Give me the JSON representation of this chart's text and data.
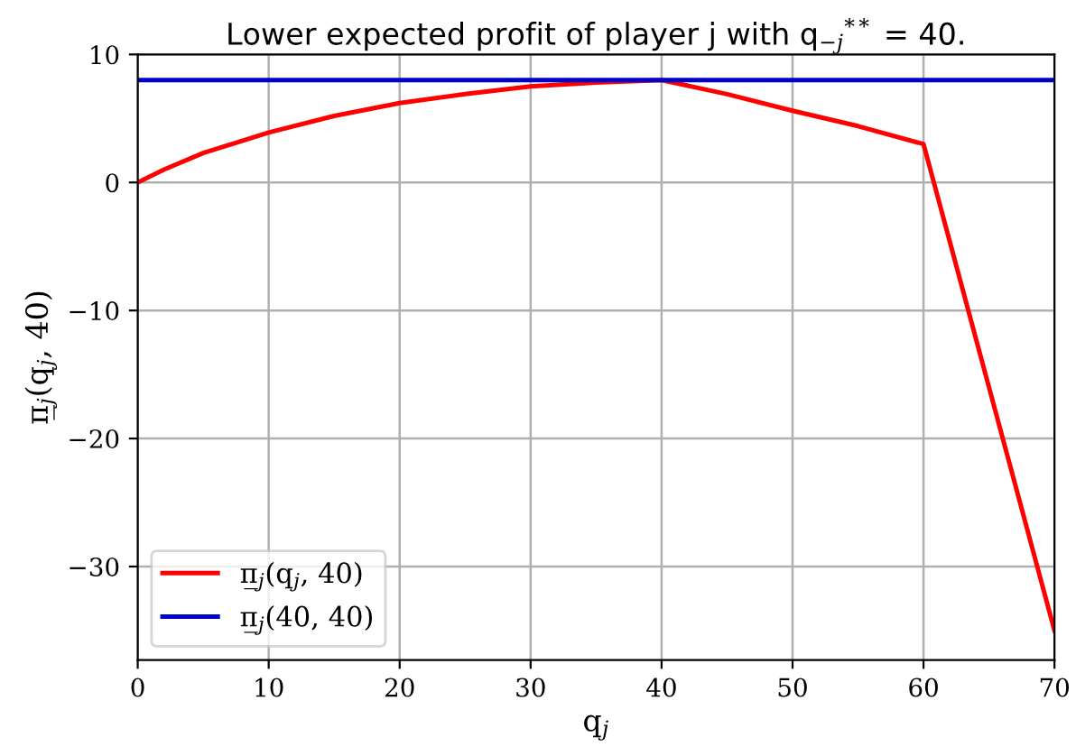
{
  "chart_data": {
    "type": "line",
    "title": "Lower expected profit of player j with q$_{−j}$$^{**}$ = 40.",
    "xlabel": "q$_{j}$",
    "ylabel": "π̲$_{j}$(q$_{j}$, 40)",
    "series": [
      {
        "name": "π̲$_{j}$(q$_{j}$, 40)",
        "color": "#ff0000",
        "x": [
          0,
          2,
          5,
          10,
          15,
          20,
          25,
          30,
          35,
          40,
          45,
          50,
          55,
          60,
          70
        ],
        "values": [
          0,
          1.0,
          2.3,
          3.9,
          5.2,
          6.2,
          6.9,
          7.5,
          7.8,
          8.0,
          6.9,
          5.6,
          4.4,
          3.0,
          -35
        ]
      },
      {
        "name": "π̲$_{j}$(40, 40)",
        "color": "#0000cc",
        "x": [
          0,
          70
        ],
        "values": [
          8.0,
          8.0
        ]
      }
    ],
    "xlim": [
      0,
      70
    ],
    "ylim": [
      -37.3,
      10
    ],
    "xticks": [
      0,
      10,
      20,
      30,
      40,
      50,
      60,
      70
    ],
    "yticks": [
      -30,
      -20,
      -10,
      0,
      10
    ],
    "grid": true,
    "legend": "bottom left",
    "line_style": "solid",
    "marker": "none"
  }
}
